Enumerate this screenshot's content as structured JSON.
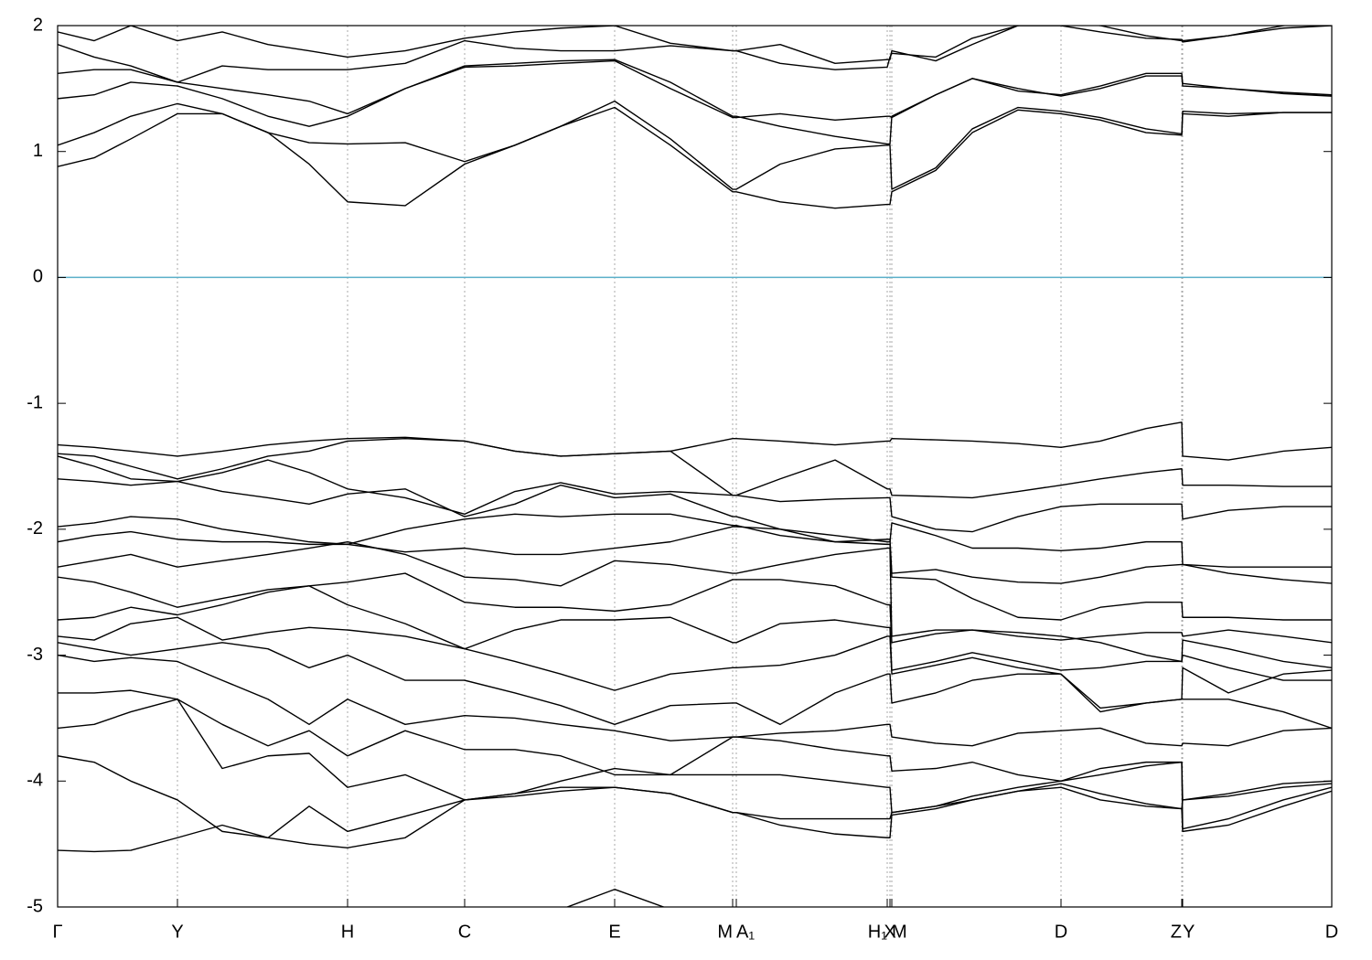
{
  "chart_data": {
    "type": "line",
    "xlim": [
      0,
      1393
    ],
    "ylim": [
      -5,
      2
    ],
    "yticks": [
      -5,
      -4,
      -3,
      -2,
      -1,
      0,
      1,
      2
    ],
    "xticks": [
      {
        "value": 0,
        "label": "Γ"
      },
      {
        "value": 131,
        "label": "Y"
      },
      {
        "value": 317,
        "label": "H"
      },
      {
        "value": 445,
        "label": "C"
      },
      {
        "value": 609,
        "label": "E"
      },
      {
        "value": 738,
        "label": "M"
      },
      {
        "value": 742,
        "label": "A₁"
      },
      {
        "value": 907,
        "label": "H₁"
      },
      {
        "value": 910,
        "label": "X"
      },
      {
        "value": 912,
        "label": "M"
      },
      {
        "value": 1097,
        "label": "D"
      },
      {
        "value": 1229,
        "label": "Z"
      },
      {
        "value": 1230,
        "label": "Y"
      },
      {
        "value": 1393,
        "label": "D"
      }
    ],
    "xgrid": true,
    "reference_line": {
      "y": 0,
      "color": "#5aafc9"
    },
    "x": [
      0,
      40,
      80,
      131,
      180,
      230,
      275,
      317,
      380,
      445,
      500,
      550,
      609,
      670,
      738,
      742,
      790,
      850,
      907,
      910,
      912,
      960,
      1000,
      1050,
      1097,
      1140,
      1190,
      1229,
      1230,
      1280,
      1340,
      1393
    ],
    "series": [
      {
        "color": "#000000",
        "values": [
          0.88,
          0.95,
          1.1,
          1.3,
          1.3,
          1.15,
          0.9,
          0.6,
          0.57,
          0.9,
          1.05,
          1.2,
          1.35,
          1.05,
          0.68,
          0.68,
          0.6,
          0.55,
          0.58,
          0.58,
          0.68,
          0.85,
          1.15,
          1.33,
          1.3,
          1.25,
          1.15,
          1.13,
          1.3,
          1.28,
          1.31,
          1.31
        ]
      },
      {
        "color": "#000000",
        "values": [
          1.05,
          1.15,
          1.28,
          1.38,
          1.3,
          1.15,
          1.07,
          1.06,
          1.07,
          0.92,
          1.05,
          1.2,
          1.4,
          1.1,
          0.7,
          0.7,
          0.9,
          1.02,
          1.05,
          1.05,
          0.7,
          0.87,
          1.18,
          1.35,
          1.32,
          1.27,
          1.18,
          1.14,
          1.32,
          1.3,
          1.31,
          1.31
        ]
      },
      {
        "color": "#000000",
        "values": [
          1.42,
          1.45,
          1.55,
          1.52,
          1.42,
          1.28,
          1.2,
          1.28,
          1.5,
          1.67,
          1.68,
          1.7,
          1.72,
          1.5,
          1.27,
          1.27,
          1.3,
          1.25,
          1.28,
          1.28,
          1.27,
          1.45,
          1.58,
          1.5,
          1.44,
          1.5,
          1.6,
          1.6,
          1.52,
          1.5,
          1.46,
          1.44
        ]
      },
      {
        "color": "#000000",
        "values": [
          1.62,
          1.65,
          1.65,
          1.55,
          1.5,
          1.45,
          1.4,
          1.3,
          1.5,
          1.68,
          1.7,
          1.72,
          1.73,
          1.55,
          1.28,
          1.28,
          1.2,
          1.12,
          1.06,
          1.06,
          1.28,
          1.45,
          1.58,
          1.48,
          1.45,
          1.52,
          1.62,
          1.62,
          1.54,
          1.5,
          1.47,
          1.45
        ]
      },
      {
        "color": "#000000",
        "values": [
          1.85,
          1.75,
          1.68,
          1.55,
          1.68,
          1.65,
          1.65,
          1.65,
          1.7,
          1.88,
          1.82,
          1.8,
          1.8,
          1.84,
          1.8,
          1.8,
          1.7,
          1.65,
          1.67,
          1.75,
          1.78,
          1.75,
          1.9,
          2.0,
          2.0,
          1.95,
          1.9,
          1.89,
          1.88,
          1.92,
          1.98,
          2.0
        ]
      },
      {
        "color": "#000000",
        "values": [
          1.95,
          1.88,
          2.0,
          1.88,
          1.95,
          1.85,
          1.8,
          1.75,
          1.8,
          1.9,
          1.95,
          1.98,
          2.0,
          1.86,
          1.8,
          1.8,
          1.85,
          1.7,
          1.73,
          1.73,
          1.8,
          1.72,
          1.85,
          2.0,
          2.05,
          2.0,
          1.92,
          1.88,
          1.87,
          1.92,
          2.0,
          2.05
        ]
      },
      {
        "color": "#000000",
        "values": [
          -1.33,
          -1.35,
          -1.38,
          -1.42,
          -1.38,
          -1.33,
          -1.3,
          -1.28,
          -1.27,
          -1.3,
          -1.38,
          -1.42,
          -1.4,
          -1.38,
          -1.28,
          -1.28,
          -1.3,
          -1.33,
          -1.3,
          -1.3,
          -1.28,
          -1.29,
          -1.3,
          -1.32,
          -1.35,
          -1.3,
          -1.2,
          -1.15,
          -1.42,
          -1.45,
          -1.38,
          -1.35
        ]
      },
      {
        "color": "#000000",
        "values": [
          -1.4,
          -1.42,
          -1.5,
          -1.6,
          -1.52,
          -1.42,
          -1.38,
          -1.3,
          -1.28,
          -1.3,
          -1.38,
          -1.42,
          -1.4,
          -1.38,
          -1.73,
          -1.73,
          -1.6,
          -1.45,
          -1.68,
          -1.68,
          -1.73,
          -1.74,
          -1.75,
          -1.7,
          -1.65,
          -1.6,
          -1.55,
          -1.52,
          -1.65,
          -1.65,
          -1.66,
          -1.66
        ]
      },
      {
        "color": "#000000",
        "values": [
          -1.42,
          -1.5,
          -1.6,
          -1.62,
          -1.55,
          -1.45,
          -1.55,
          -1.68,
          -1.75,
          -1.88,
          -1.7,
          -1.63,
          -1.72,
          -1.7,
          -1.73,
          -1.73,
          -1.78,
          -1.76,
          -1.75,
          -1.75,
          -1.9,
          -2.0,
          -2.02,
          -1.9,
          -1.82,
          -1.8,
          -1.8,
          -1.8,
          -1.92,
          -1.85,
          -1.82,
          -1.82
        ]
      },
      {
        "color": "#000000",
        "values": [
          -1.6,
          -1.62,
          -1.65,
          -1.62,
          -1.7,
          -1.75,
          -1.8,
          -1.72,
          -1.68,
          -1.9,
          -1.8,
          -1.65,
          -1.75,
          -1.72,
          -1.9,
          -1.9,
          -2.0,
          -2.05,
          -2.1,
          -2.1,
          -1.95,
          -2.05,
          -2.15,
          -2.15,
          -2.17,
          -2.15,
          -2.1,
          -2.1,
          -2.28,
          -2.3,
          -2.3,
          -2.3
        ]
      },
      {
        "color": "#000000",
        "values": [
          -1.98,
          -1.95,
          -1.9,
          -1.92,
          -2.0,
          -2.05,
          -2.1,
          -2.12,
          -2.0,
          -1.92,
          -1.88,
          -1.9,
          -1.88,
          -1.88,
          -1.97,
          -1.97,
          -2.05,
          -2.1,
          -2.08,
          -2.08,
          -2.35,
          -2.32,
          -2.38,
          -2.42,
          -2.43,
          -2.38,
          -2.3,
          -2.28,
          -2.28,
          -2.35,
          -2.4,
          -2.43
        ]
      },
      {
        "color": "#000000",
        "values": [
          -2.1,
          -2.05,
          -2.02,
          -2.08,
          -2.1,
          -2.1,
          -2.12,
          -2.12,
          -2.18,
          -2.15,
          -2.2,
          -2.2,
          -2.15,
          -2.1,
          -1.98,
          -1.98,
          -2.0,
          -2.1,
          -2.12,
          -2.12,
          -2.38,
          -2.4,
          -2.55,
          -2.7,
          -2.72,
          -2.62,
          -2.58,
          -2.58,
          -2.7,
          -2.7,
          -2.72,
          -2.72
        ]
      },
      {
        "color": "#000000",
        "values": [
          -2.3,
          -2.25,
          -2.2,
          -2.3,
          -2.25,
          -2.2,
          -2.15,
          -2.1,
          -2.2,
          -2.38,
          -2.4,
          -2.45,
          -2.25,
          -2.28,
          -2.35,
          -2.35,
          -2.28,
          -2.2,
          -2.15,
          -2.15,
          -2.85,
          -2.8,
          -2.8,
          -2.85,
          -2.88,
          -2.85,
          -2.82,
          -2.82,
          -2.85,
          -2.8,
          -2.85,
          -2.9
        ]
      },
      {
        "color": "#000000",
        "values": [
          -2.38,
          -2.42,
          -2.5,
          -2.62,
          -2.55,
          -2.48,
          -2.45,
          -2.42,
          -2.35,
          -2.58,
          -2.62,
          -2.62,
          -2.65,
          -2.6,
          -2.4,
          -2.4,
          -2.4,
          -2.45,
          -2.6,
          -2.6,
          -2.9,
          -2.83,
          -2.8,
          -2.82,
          -2.85,
          -2.9,
          -3.0,
          -3.05,
          -2.88,
          -2.95,
          -3.05,
          -3.1
        ]
      },
      {
        "color": "#000000",
        "values": [
          -2.72,
          -2.7,
          -2.62,
          -2.68,
          -2.6,
          -2.5,
          -2.45,
          -2.6,
          -2.75,
          -2.95,
          -2.8,
          -2.72,
          -2.72,
          -2.7,
          -2.9,
          -2.9,
          -2.75,
          -2.72,
          -2.78,
          -2.78,
          -3.12,
          -3.05,
          -2.98,
          -3.05,
          -3.12,
          -3.1,
          -3.05,
          -3.05,
          -3.0,
          -3.1,
          -3.2,
          -3.2
        ]
      },
      {
        "color": "#000000",
        "values": [
          -2.85,
          -2.88,
          -2.75,
          -2.7,
          -2.88,
          -2.82,
          -2.78,
          -2.8,
          -2.85,
          -2.95,
          -3.05,
          -3.15,
          -3.28,
          -3.15,
          -3.1,
          -3.1,
          -3.08,
          -3.0,
          -2.85,
          -2.85,
          -3.15,
          -3.08,
          -3.02,
          -3.1,
          -3.15,
          -3.42,
          -3.38,
          -3.35,
          -3.1,
          -3.3,
          -3.15,
          -3.12
        ]
      },
      {
        "color": "#000000",
        "values": [
          -2.9,
          -2.95,
          -3.0,
          -2.95,
          -2.9,
          -2.95,
          -3.1,
          -3.0,
          -3.2,
          -3.2,
          -3.3,
          -3.4,
          -3.55,
          -3.4,
          -3.38,
          -3.38,
          -3.55,
          -3.3,
          -3.15,
          -3.15,
          -3.38,
          -3.3,
          -3.2,
          -3.15,
          -3.15,
          -3.45,
          -3.38,
          -3.35,
          -3.35,
          -3.35,
          -3.45,
          -3.58
        ]
      },
      {
        "color": "#000000",
        "values": [
          -3.0,
          -3.05,
          -3.02,
          -3.05,
          -3.2,
          -3.35,
          -3.55,
          -3.35,
          -3.55,
          -3.48,
          -3.5,
          -3.55,
          -3.6,
          -3.68,
          -3.65,
          -3.65,
          -3.62,
          -3.6,
          -3.55,
          -3.55,
          -3.65,
          -3.7,
          -3.72,
          -3.62,
          -3.6,
          -3.58,
          -3.7,
          -3.72,
          -3.7,
          -3.72,
          -3.6,
          -3.58
        ]
      },
      {
        "color": "#000000",
        "values": [
          -3.3,
          -3.3,
          -3.28,
          -3.35,
          -3.55,
          -3.72,
          -3.6,
          -3.8,
          -3.6,
          -3.75,
          -3.75,
          -3.8,
          -3.95,
          -3.95,
          -3.65,
          -3.65,
          -3.68,
          -3.75,
          -3.8,
          -3.8,
          -3.92,
          -3.9,
          -3.85,
          -3.95,
          -4.0,
          -3.9,
          -3.85,
          -3.85,
          -4.15,
          -4.1,
          -4.02,
          -4.0
        ]
      },
      {
        "color": "#000000",
        "values": [
          -3.58,
          -3.55,
          -3.45,
          -3.35,
          -3.9,
          -3.8,
          -3.78,
          -4.05,
          -3.95,
          -4.15,
          -4.1,
          -4.0,
          -3.9,
          -3.95,
          -3.95,
          -3.95,
          -3.95,
          -4.0,
          -4.05,
          -4.05,
          -4.25,
          -4.2,
          -4.12,
          -4.05,
          -4.0,
          -3.95,
          -3.88,
          -3.85,
          -4.38,
          -4.3,
          -4.15,
          -4.05
        ]
      },
      {
        "color": "#000000",
        "values": [
          -3.8,
          -3.85,
          -4.0,
          -4.15,
          -4.4,
          -4.45,
          -4.2,
          -4.4,
          -4.28,
          -4.15,
          -4.1,
          -4.05,
          -4.05,
          -4.1,
          -4.25,
          -4.25,
          -4.35,
          -4.42,
          -4.45,
          -4.45,
          -4.27,
          -4.22,
          -4.15,
          -4.08,
          -4.02,
          -4.1,
          -4.18,
          -4.22,
          -4.4,
          -4.35,
          -4.2,
          -4.08
        ]
      },
      {
        "color": "#000000",
        "values": [
          -4.55,
          -4.56,
          -4.55,
          -4.45,
          -4.35,
          -4.45,
          -4.5,
          -4.53,
          -4.45,
          -4.15,
          -4.12,
          -4.08,
          -4.05,
          -4.1,
          -4.25,
          -4.25,
          -4.3,
          -4.3,
          -4.3,
          -4.3,
          -4.25,
          -4.2,
          -4.15,
          -4.08,
          -4.05,
          -4.15,
          -4.2,
          -4.22,
          -4.15,
          -4.12,
          -4.05,
          -4.02
        ]
      },
      {
        "color": "#000000",
        "values": [
          null,
          null,
          null,
          null,
          null,
          null,
          null,
          null,
          null,
          null,
          null,
          -5.02,
          -4.86,
          -5.02,
          null,
          null,
          null,
          null,
          null,
          null,
          null,
          null,
          null,
          null,
          null,
          null,
          null,
          null,
          null,
          null,
          null,
          null
        ]
      }
    ]
  }
}
